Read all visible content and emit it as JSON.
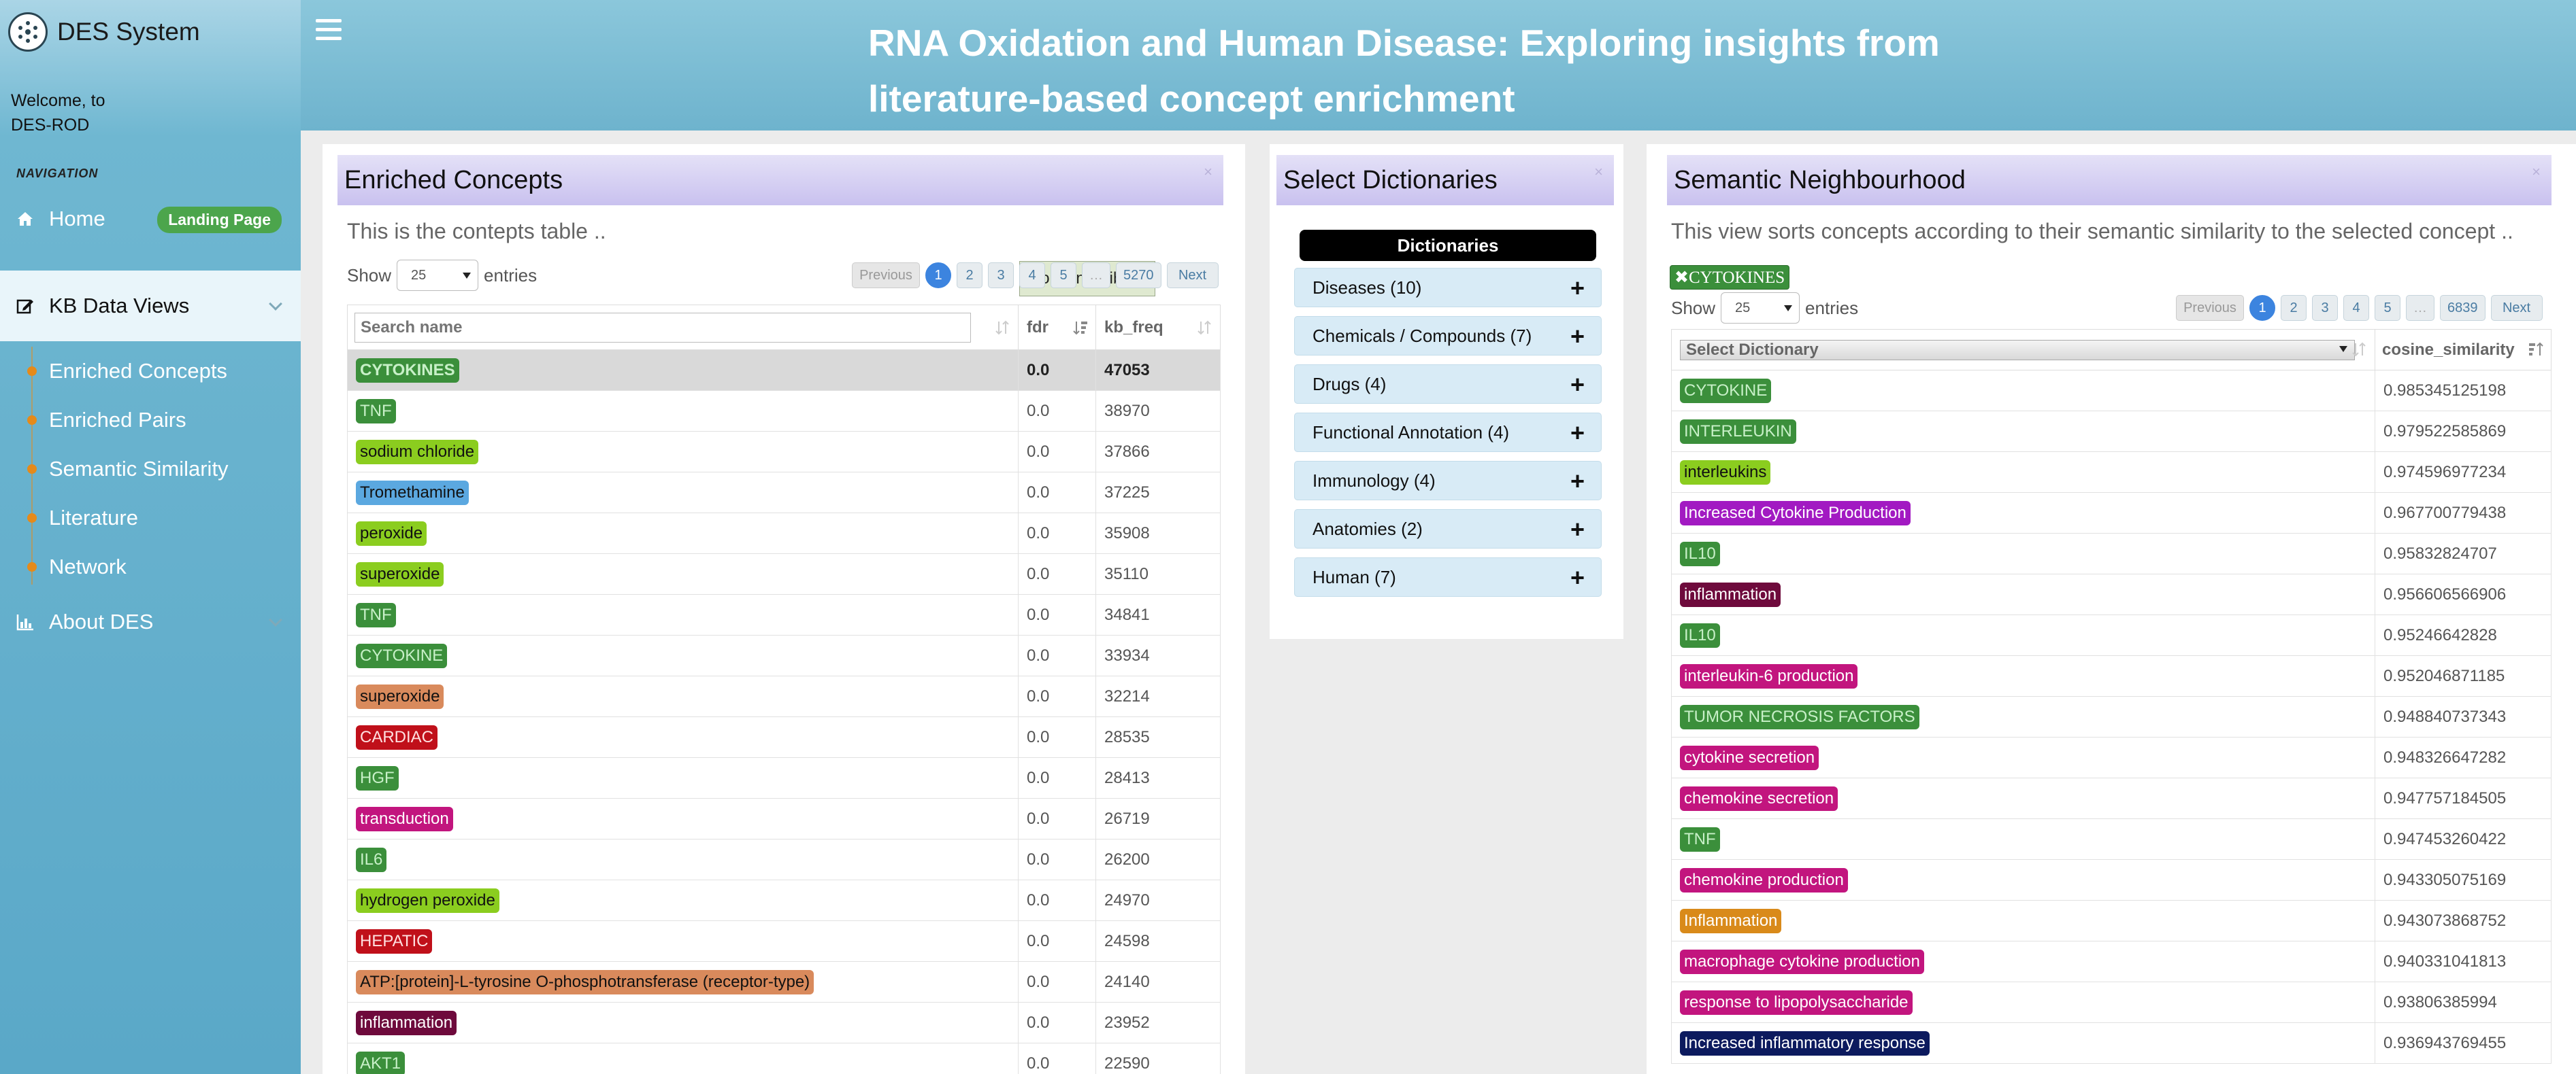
{
  "sidebar": {
    "brand": "DES System",
    "welcome_line1": "Welcome, to",
    "welcome_line2": "DES-ROD",
    "nav_header": "NAVIGATION",
    "home": {
      "label": "Home",
      "badge": "Landing Page",
      "icon": "home-icon"
    },
    "kb": {
      "label": "KB Data Views",
      "icon": "edit-icon"
    },
    "sub_items": [
      {
        "label": "Enriched Concepts"
      },
      {
        "label": "Enriched Pairs"
      },
      {
        "label": "Semantic Similarity"
      },
      {
        "label": "Literature"
      },
      {
        "label": "Network"
      }
    ],
    "about": {
      "label": "About DES",
      "icon": "bar-chart-icon"
    }
  },
  "header": {
    "title": "RNA Oxidation and Human Disease: Exploring insights from literature-based concept enrichment"
  },
  "enriched": {
    "title": "Enriched Concepts",
    "description": "This is the contepts table ..",
    "show": "Show",
    "page_size": "25",
    "entries": "entries",
    "column_visibility": "Column visibility",
    "pager": {
      "previous": "Previous",
      "pages": [
        "1",
        "2",
        "3",
        "4",
        "5"
      ],
      "ellipsis": "…",
      "last": "5270",
      "next": "Next"
    },
    "search_placeholder": "Search name",
    "columns": [
      "fdr",
      "kb_freq"
    ],
    "rows": [
      {
        "name": "CYTOKINES",
        "fdr": "0.0",
        "freq": "47053",
        "bg": "#3b8f3b",
        "fg": "#c8f0c8"
      },
      {
        "name": "TNF",
        "fdr": "0.0",
        "freq": "38970",
        "bg": "#3b8f3b",
        "fg": "#c8f0c8"
      },
      {
        "name": "sodium chloride",
        "fdr": "0.0",
        "freq": "37866",
        "bg": "#8bcd1f",
        "fg": "#111111"
      },
      {
        "name": "Tromethamine",
        "fdr": "0.0",
        "freq": "37225",
        "bg": "#5ba8e0",
        "fg": "#111111"
      },
      {
        "name": "peroxide",
        "fdr": "0.0",
        "freq": "35908",
        "bg": "#8bcd1f",
        "fg": "#111111"
      },
      {
        "name": "superoxide",
        "fdr": "0.0",
        "freq": "35110",
        "bg": "#8bcd1f",
        "fg": "#111111"
      },
      {
        "name": "TNF",
        "fdr": "0.0",
        "freq": "34841",
        "bg": "#3b8f3b",
        "fg": "#c8f0c8"
      },
      {
        "name": "CYTOKINE",
        "fdr": "0.0",
        "freq": "33934",
        "bg": "#3b8f3b",
        "fg": "#c8f0c8"
      },
      {
        "name": "superoxide",
        "fdr": "0.0",
        "freq": "32214",
        "bg": "#d98a5c",
        "fg": "#111111"
      },
      {
        "name": "CARDIAC",
        "fdr": "0.0",
        "freq": "28535",
        "bg": "#c0101a",
        "fg": "#ffe0e0"
      },
      {
        "name": "HGF",
        "fdr": "0.0",
        "freq": "28413",
        "bg": "#3b8f3b",
        "fg": "#c8f0c8"
      },
      {
        "name": "transduction",
        "fdr": "0.0",
        "freq": "26719",
        "bg": "#c2157e",
        "fg": "#ffffff"
      },
      {
        "name": "IL6",
        "fdr": "0.0",
        "freq": "26200",
        "bg": "#3b8f3b",
        "fg": "#c8f0c8"
      },
      {
        "name": "hydrogen peroxide",
        "fdr": "0.0",
        "freq": "24970",
        "bg": "#8bcd1f",
        "fg": "#111111"
      },
      {
        "name": "HEPATIC",
        "fdr": "0.0",
        "freq": "24598",
        "bg": "#c0101a",
        "fg": "#ffe0e0"
      },
      {
        "name": "ATP:[protein]-L-tyrosine O-phosphotransferase (receptor-type)",
        "fdr": "0.0",
        "freq": "24140",
        "bg": "#d98a5c",
        "fg": "#111111"
      },
      {
        "name": "inflammation",
        "fdr": "0.0",
        "freq": "23952",
        "bg": "#6e0a3c",
        "fg": "#ffffff"
      },
      {
        "name": "AKT1",
        "fdr": "0.0",
        "freq": "22590",
        "bg": "#3b8f3b",
        "fg": "#c8f0c8"
      }
    ]
  },
  "dictionaries": {
    "title": "Select Dictionaries",
    "header": "Dictionaries",
    "items": [
      {
        "label": "Diseases (10)"
      },
      {
        "label": "Chemicals / Compounds (7)"
      },
      {
        "label": "Drugs (4)"
      },
      {
        "label": "Functional Annotation (4)"
      },
      {
        "label": "Immunology (4)"
      },
      {
        "label": "Anatomies (2)"
      },
      {
        "label": "Human (7)"
      }
    ],
    "plus": "+"
  },
  "semantic": {
    "title": "Semantic Neighbourhood",
    "description": "This view sorts concepts according to their semantic similarity to the selected concept ..",
    "selected_chip": "✖CYTOKINES",
    "show": "Show",
    "page_size": "25",
    "entries": "entries",
    "pager": {
      "previous": "Previous",
      "pages": [
        "1",
        "2",
        "3",
        "4",
        "5"
      ],
      "ellipsis": "…",
      "last": "6839",
      "next": "Next"
    },
    "select_dictionary": "Select Dictionary",
    "column": "cosine_similarity",
    "rows": [
      {
        "name": "CYTOKINE",
        "value": "0.985345125198",
        "bg": "#3b8f3b",
        "fg": "#c8f0c8"
      },
      {
        "name": "INTERLEUKIN",
        "value": "0.979522585869",
        "bg": "#3b8f3b",
        "fg": "#c8f0c8"
      },
      {
        "name": "interleukins",
        "value": "0.974596977234",
        "bg": "#8bcd1f",
        "fg": "#111111"
      },
      {
        "name": "Increased Cytokine Production",
        "value": "0.967700779438",
        "bg": "#a21ac2",
        "fg": "#ffffff"
      },
      {
        "name": "IL10",
        "value": "0.95832824707",
        "bg": "#3b8f3b",
        "fg": "#c8f0c8"
      },
      {
        "name": "inflammation",
        "value": "0.956606566906",
        "bg": "#6e0a3c",
        "fg": "#ffffff"
      },
      {
        "name": "IL10",
        "value": "0.95246642828",
        "bg": "#3b8f3b",
        "fg": "#c8f0c8"
      },
      {
        "name": "interleukin-6 production",
        "value": "0.952046871185",
        "bg": "#c2157e",
        "fg": "#ffffff"
      },
      {
        "name": "TUMOR NECROSIS FACTORS",
        "value": "0.948840737343",
        "bg": "#3b8f3b",
        "fg": "#c8f0c8"
      },
      {
        "name": "cytokine secretion",
        "value": "0.948326647282",
        "bg": "#c2157e",
        "fg": "#ffffff"
      },
      {
        "name": "chemokine secretion",
        "value": "0.947757184505",
        "bg": "#c2157e",
        "fg": "#ffffff"
      },
      {
        "name": "TNF",
        "value": "0.947453260422",
        "bg": "#3b8f3b",
        "fg": "#c8f0c8"
      },
      {
        "name": "chemokine production",
        "value": "0.943305075169",
        "bg": "#c2157e",
        "fg": "#ffffff"
      },
      {
        "name": "Inflammation",
        "value": "0.943073868752",
        "bg": "#d98a1a",
        "fg": "#ffffff"
      },
      {
        "name": "macrophage cytokine production",
        "value": "0.940331041813",
        "bg": "#c2157e",
        "fg": "#ffffff"
      },
      {
        "name": "response to lipopolysaccharide",
        "value": "0.93806385994",
        "bg": "#c2157e",
        "fg": "#ffffff"
      },
      {
        "name": "Increased inflammatory response",
        "value": "0.936943769455",
        "bg": "#0c1a5e",
        "fg": "#ffffff"
      }
    ]
  }
}
